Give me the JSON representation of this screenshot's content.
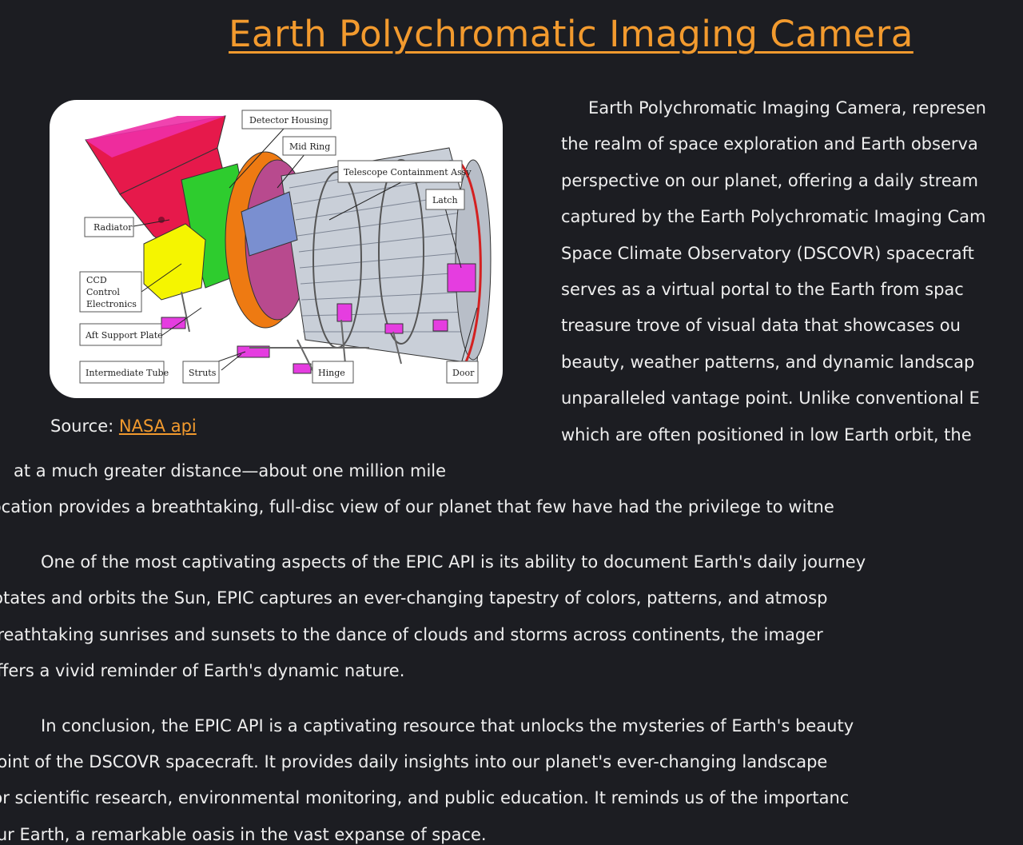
{
  "page": {
    "title": "Earth Polychromatic Imaging Camera"
  },
  "figure": {
    "labels": {
      "detector_housing": "Detector Housing",
      "mid_ring": "Mid Ring",
      "telescope_containment": "Telescope Containment Assy",
      "latch": "Latch",
      "radiator": "Radiator",
      "ccd_1": "CCD",
      "ccd_2": "Control",
      "ccd_3": "Electronics",
      "aft_support_plate": "Aft Support Plate",
      "intermediate_tube": "Intermediate Tube",
      "struts": "Struts",
      "hinge": "Hinge",
      "door": "Door"
    },
    "source_prefix": "Source: ",
    "source_link": "NASA api"
  },
  "article": {
    "paragraph1_lines": [
      "Earth Polychromatic Imaging Camera, represen",
      "the realm of space exploration and Earth observa",
      "perspective on our planet, offering a daily stream",
      "captured by the Earth Polychromatic Imaging Cam",
      "Space Climate Observatory (DSCOVR) spacecraft",
      "serves as a virtual portal to the Earth from spac",
      "treasure trove of visual data that showcases ou",
      "beauty, weather patterns, and dynamic landscap",
      "unparalleled vantage point. Unlike conventional E",
      "which are often positioned in low Earth orbit, the",
      "at a much greater distance—about one million mile",
      "location provides a breathtaking, full-disc view of our planet that few have had the privilege to witne"
    ],
    "paragraph2_lines": [
      "One of the most captivating aspects of the EPIC API is its ability to document Earth's daily journey",
      "rotates and orbits the Sun, EPIC captures an ever-changing tapestry of colors, patterns, and atmosp",
      "breathtaking sunrises and sunsets to the dance of clouds and storms across continents, the imager",
      "offers a vivid reminder of Earth's dynamic nature."
    ],
    "paragraph3_lines": [
      "In conclusion, the EPIC API is a captivating resource that unlocks the mysteries of Earth's beauty",
      "point of the DSCOVR spacecraft. It provides daily insights into our planet's ever-changing landscape",
      "for scientific research, environmental monitoring, and public education. It reminds us of the importanc",
      "our Earth, a remarkable oasis in the vast expanse of space."
    ]
  },
  "colors": {
    "background": "#1c1d22",
    "accent": "#f29a2e",
    "text": "#eeeeee"
  }
}
